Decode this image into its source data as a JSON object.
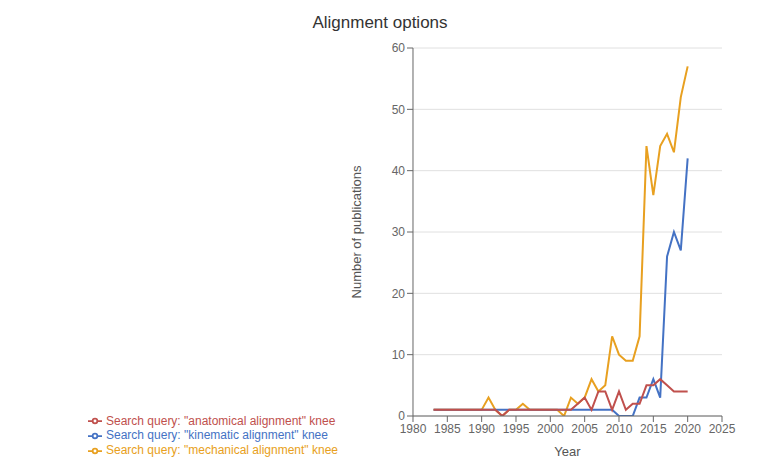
{
  "chart_data": {
    "type": "line",
    "title": "Alignment options",
    "xlabel": "Year",
    "ylabel": "Number of publications",
    "x": [
      1983,
      1984,
      1985,
      1986,
      1987,
      1988,
      1989,
      1990,
      1991,
      1992,
      1993,
      1994,
      1995,
      1996,
      1997,
      1998,
      1999,
      2000,
      2001,
      2002,
      2003,
      2004,
      2005,
      2006,
      2007,
      2008,
      2009,
      2010,
      2011,
      2012,
      2013,
      2014,
      2015,
      2016,
      2017,
      2018,
      2019,
      2020
    ],
    "series": [
      {
        "name": "Search query: \"mechanical alignment\" knee",
        "color": "#E8A020",
        "values": [
          1,
          1,
          1,
          1,
          1,
          1,
          1,
          1,
          3,
          1,
          0,
          1,
          1,
          2,
          1,
          1,
          1,
          1,
          1,
          0,
          3,
          2,
          3,
          6,
          4,
          5,
          13,
          10,
          9,
          9,
          13,
          44,
          36,
          44,
          46,
          43,
          52,
          57
        ]
      },
      {
        "name": "Search query: \"kinematic alignment\" knee",
        "color": "#4472C4",
        "values": [
          1,
          1,
          1,
          1,
          1,
          1,
          1,
          1,
          1,
          1,
          1,
          1,
          1,
          1,
          1,
          1,
          1,
          1,
          1,
          1,
          1,
          1,
          1,
          1,
          1,
          1,
          1,
          0,
          0,
          0,
          3,
          3,
          6,
          3,
          26,
          30,
          27,
          42
        ]
      },
      {
        "name": "Search query: \"anatomical alignment\" knee",
        "color": "#C0504D",
        "values": [
          1,
          1,
          1,
          1,
          1,
          1,
          1,
          1,
          1,
          1,
          0,
          1,
          1,
          1,
          1,
          1,
          1,
          1,
          1,
          1,
          1,
          2,
          3,
          1,
          4,
          4,
          1,
          4,
          1,
          2,
          2,
          5,
          5,
          6,
          5,
          4,
          4,
          4
        ]
      }
    ],
    "xlim": [
      1980,
      2025
    ],
    "ylim": [
      0,
      60
    ],
    "xticks": [
      1980,
      1985,
      1990,
      1995,
      2000,
      2005,
      2010,
      2015,
      2020,
      2025
    ],
    "yticks": [
      0,
      10,
      20,
      30,
      40,
      50,
      60
    ],
    "grid": "y",
    "legend": "bottom"
  }
}
